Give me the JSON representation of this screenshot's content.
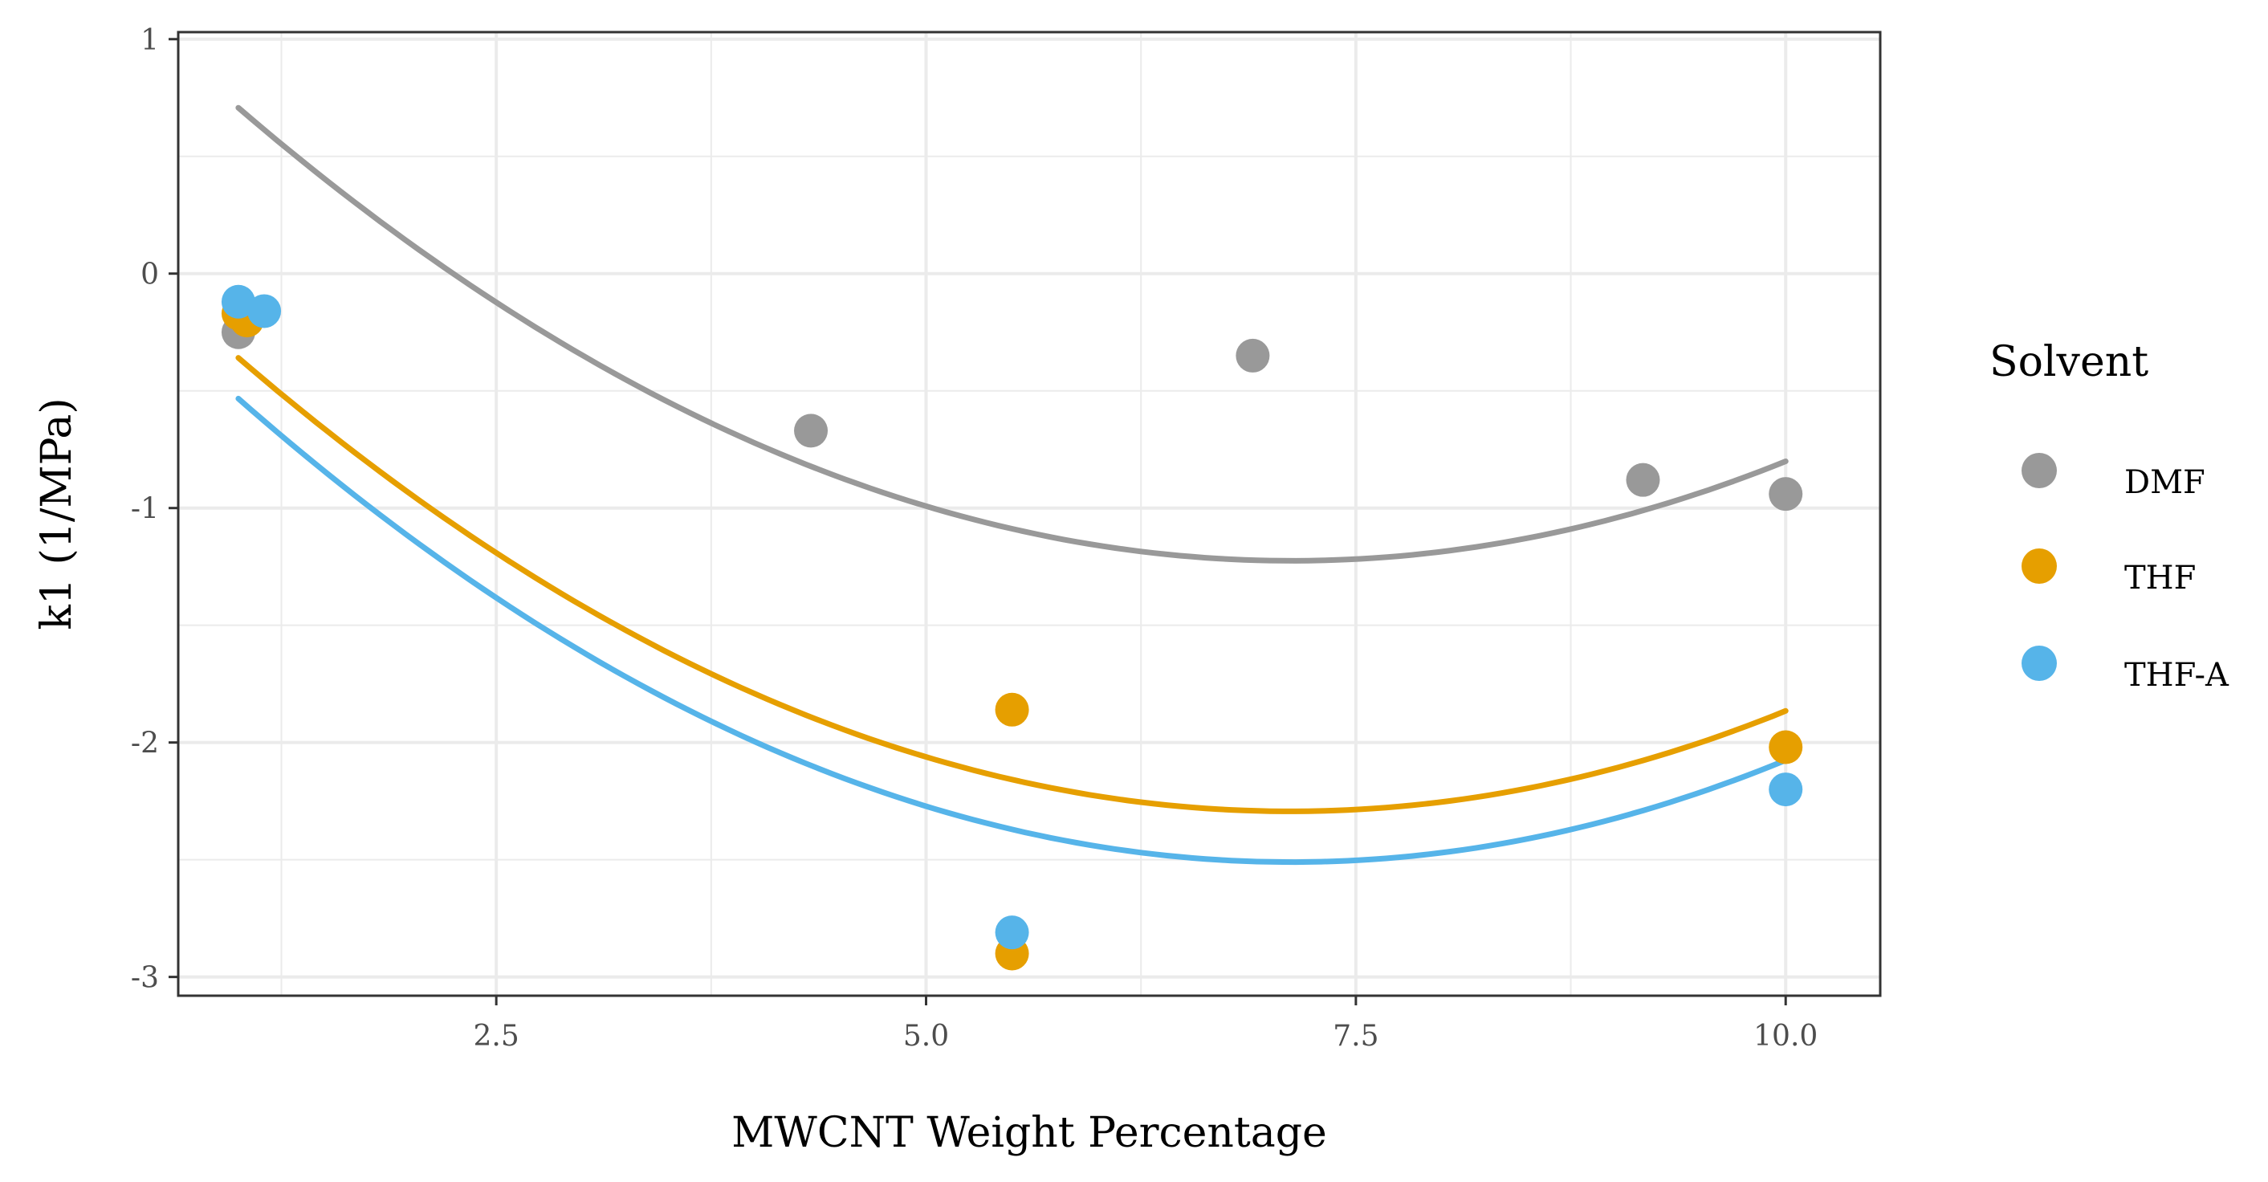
{
  "chart_data": {
    "type": "scatter",
    "title": "",
    "xlabel": "MWCNT Weight Percentage",
    "ylabel": "k1 (1/MPa)",
    "xlim": [
      0.65,
      10.55
    ],
    "ylim": [
      -3.08,
      1.03
    ],
    "x_ticks": [
      2.5,
      5.0,
      7.5,
      10.0
    ],
    "x_tick_labels": [
      "2.5",
      "5.0",
      "7.5",
      "10.0"
    ],
    "y_ticks": [
      -3,
      -2,
      -1,
      0,
      1
    ],
    "y_tick_labels": [
      "-3",
      "-2",
      "-1",
      "0",
      "1"
    ],
    "x_minor": [
      1.25,
      3.75,
      6.25,
      8.75
    ],
    "y_minor": [
      -2.5,
      -1.5,
      -0.5,
      0.5
    ],
    "grid": true,
    "legend": {
      "title": "Solvent",
      "position": "right"
    },
    "series": [
      {
        "name": "DMF",
        "color": "#999999",
        "points": [
          {
            "x": 1.0,
            "y": -0.25
          },
          {
            "x": 4.33,
            "y": -0.67
          },
          {
            "x": 6.9,
            "y": -0.35
          },
          {
            "x": 9.17,
            "y": -0.88
          },
          {
            "x": 10.0,
            "y": -0.94
          }
        ],
        "fit": {
          "x_range": [
            1.0,
            10.0
          ],
          "poly": [
            1.3894,
            -0.7335,
            0.05145
          ]
        }
      },
      {
        "name": "THF",
        "color": "#E69F00",
        "points": [
          {
            "x": 1.0,
            "y": -0.17
          },
          {
            "x": 1.05,
            "y": -0.2
          },
          {
            "x": 5.5,
            "y": -1.86
          },
          {
            "x": 5.5,
            "y": -2.9
          },
          {
            "x": 10.0,
            "y": -2.02
          }
        ],
        "fit": {
          "x_range": [
            1.0,
            10.0
          ],
          "poly": [
            0.3247,
            -0.7355,
            0.05165
          ]
        }
      },
      {
        "name": "THF-A",
        "color": "#56B4E9",
        "points": [
          {
            "x": 1.0,
            "y": -0.12
          },
          {
            "x": 1.15,
            "y": -0.16
          },
          {
            "x": 5.5,
            "y": -2.81
          },
          {
            "x": 10.0,
            "y": -2.2
          }
        ],
        "fit": {
          "x_range": [
            1.0,
            10.0
          ],
          "poly": [
            0.1647,
            -0.7506,
            0.05266
          ]
        }
      }
    ]
  }
}
